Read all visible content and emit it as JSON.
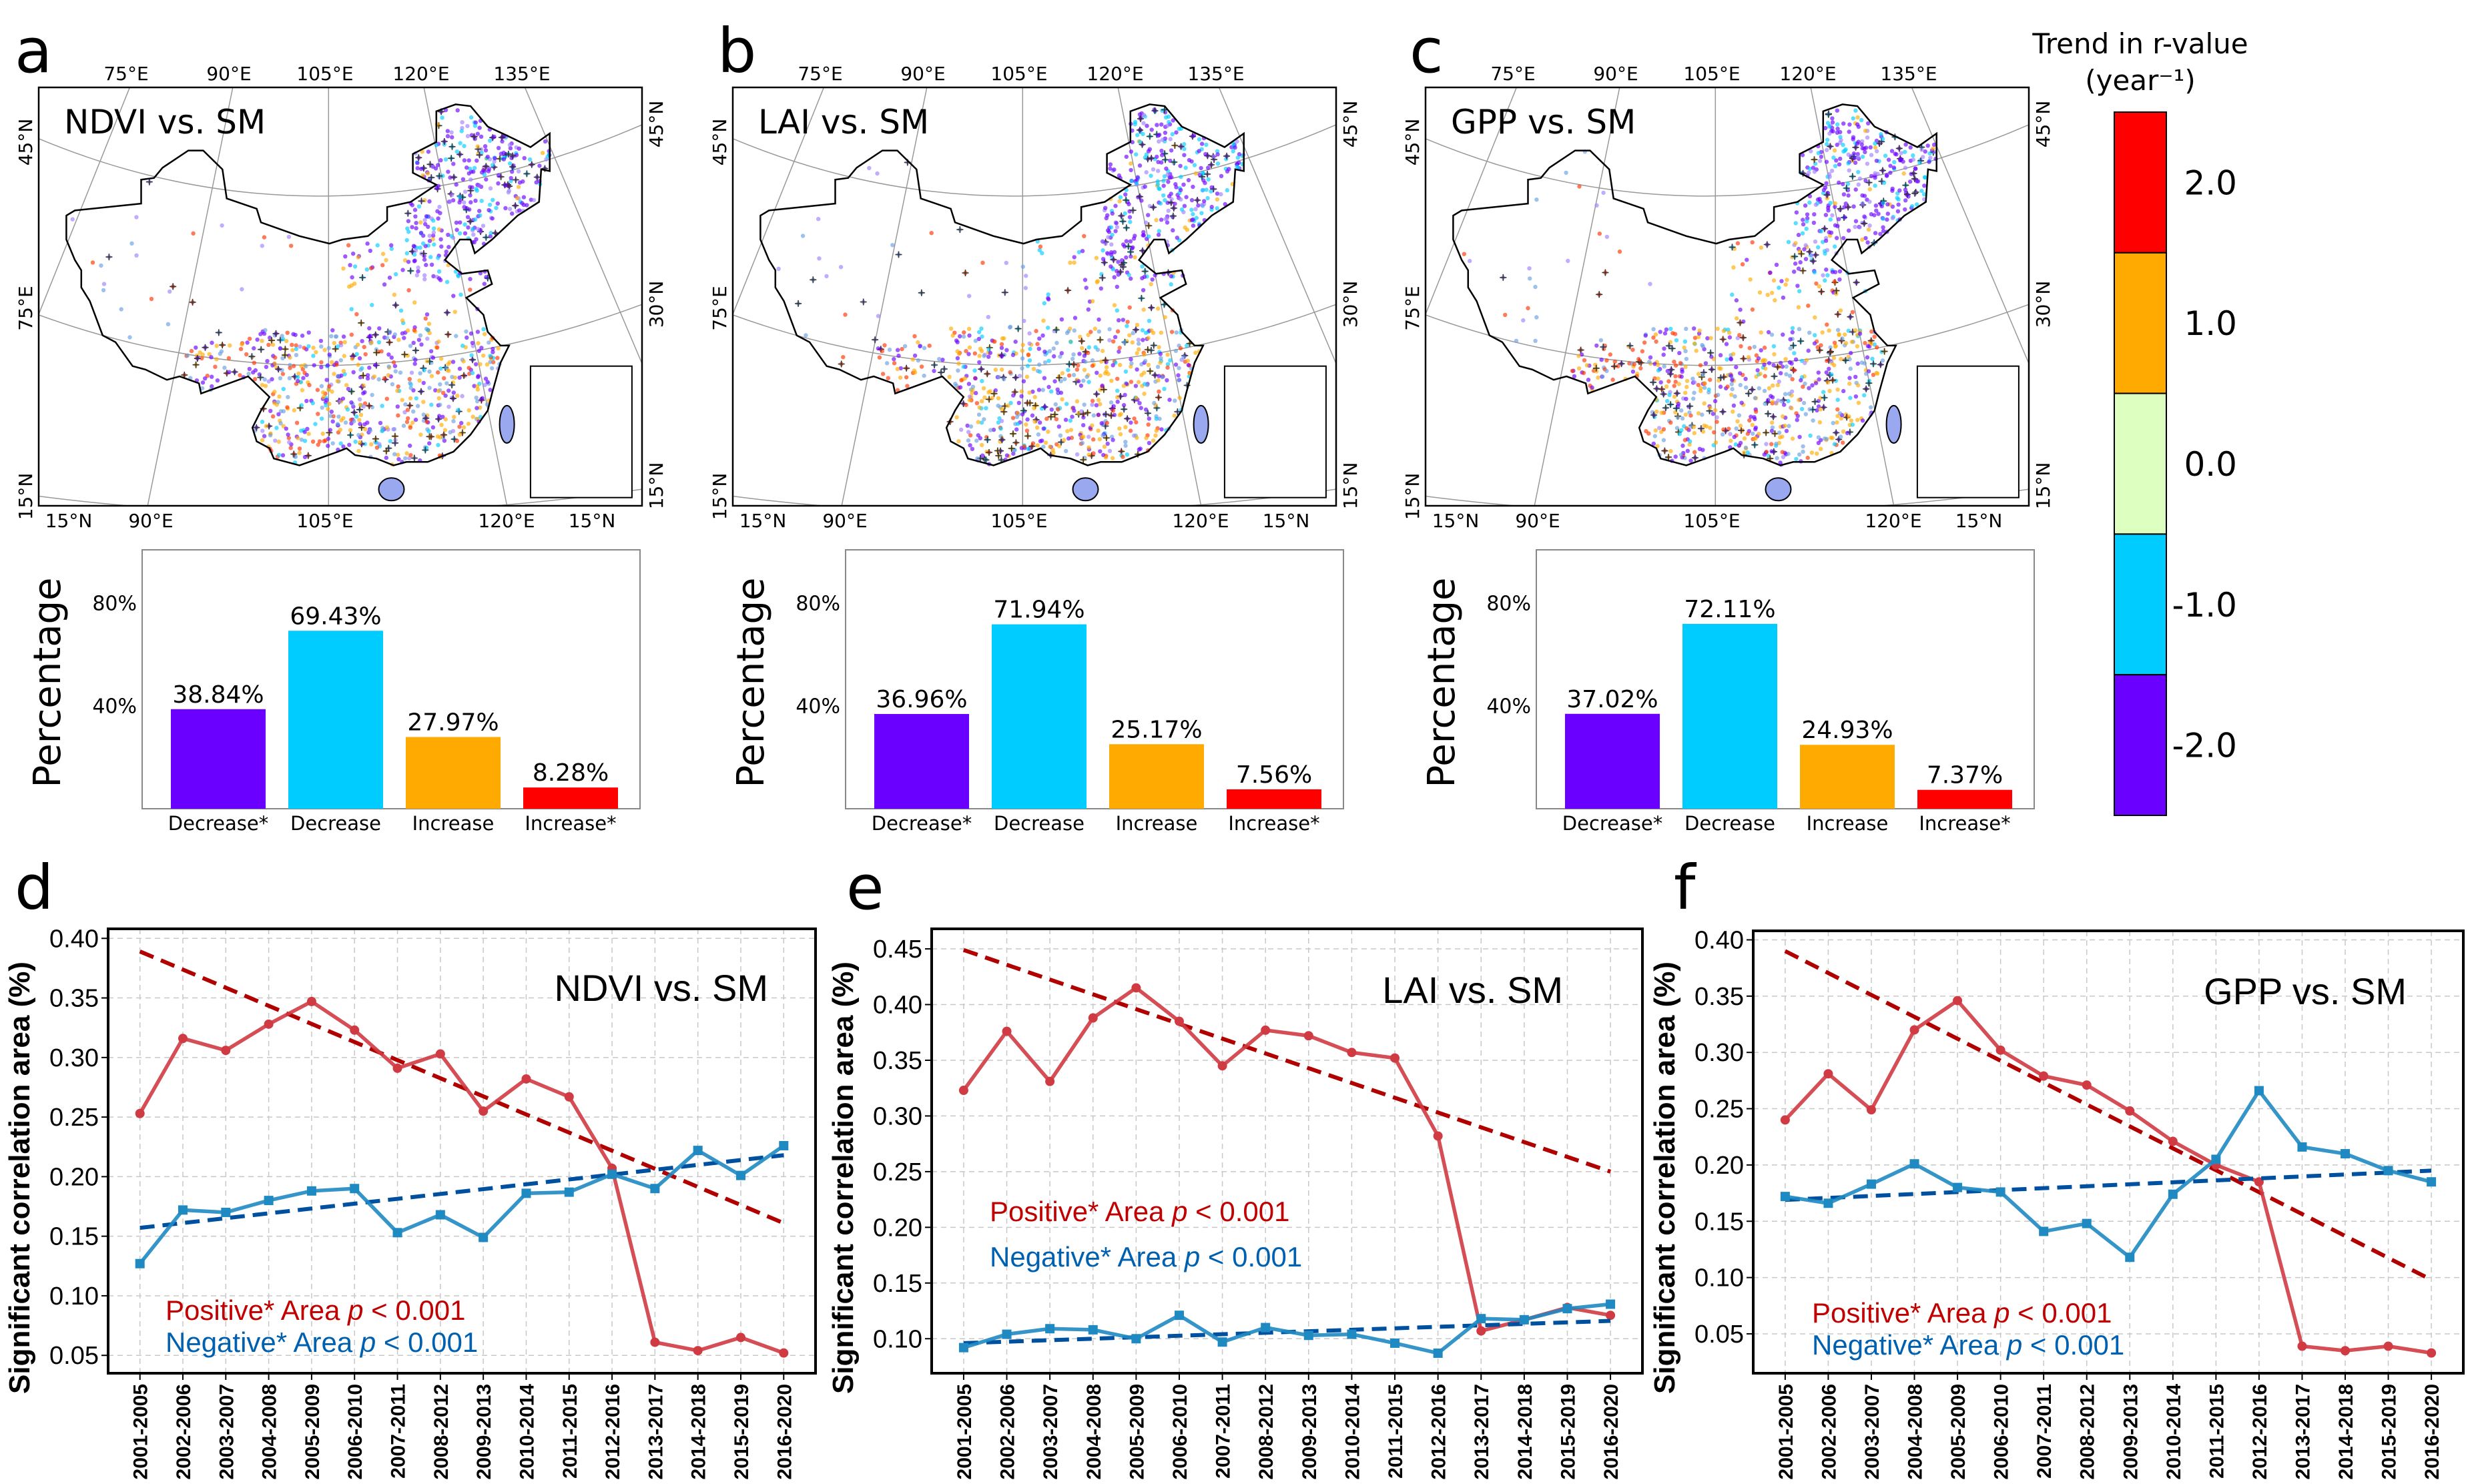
{
  "panel_labels": [
    "a",
    "b",
    "c",
    "d",
    "e",
    "f"
  ],
  "maps": [
    {
      "title": "NDVI vs. SM"
    },
    {
      "title": "LAI vs. SM"
    },
    {
      "title": "GPP vs. SM"
    }
  ],
  "map_labels": {
    "top": [
      "75°E",
      "90°E",
      "105°E",
      "120°E",
      "135°E"
    ],
    "bottom": [
      "15°N",
      "90°E",
      "105°E",
      "120°E",
      "15°N"
    ],
    "left": [
      "45°N",
      "75°E",
      "15°N"
    ],
    "right": [
      "45°N",
      "30°N",
      "15°N"
    ]
  },
  "colorbar": {
    "title_line1": "Trend in r-value",
    "title_line2": "(year⁻¹)",
    "ticks": [
      "2.0",
      "1.0",
      "0.0",
      "-1.0",
      "-2.0"
    ],
    "colors": [
      "#ff0000",
      "#ffaa00",
      "#ddffc0",
      "#00ccff",
      "#6a00ff"
    ]
  },
  "chart_data": [
    {
      "type": "bar",
      "panel": "a",
      "categories": [
        "Decrease*",
        "Decrease",
        "Increase",
        "Increase*"
      ],
      "values": [
        38.84,
        69.43,
        27.97,
        8.28
      ],
      "value_labels": [
        "38.84%",
        "69.43%",
        "27.97%",
        "8.28%"
      ],
      "colors": [
        "#6a00ff",
        "#00ccff",
        "#ffaa00",
        "#ff0000"
      ],
      "ylabel": "Percentage",
      "yticks": [
        40,
        80
      ],
      "ytick_labels": [
        "40%",
        "80%"
      ],
      "ylim": [
        0,
        101
      ]
    },
    {
      "type": "bar",
      "panel": "b",
      "categories": [
        "Decrease*",
        "Decrease",
        "Increase",
        "Increase*"
      ],
      "values": [
        36.96,
        71.94,
        25.17,
        7.56
      ],
      "value_labels": [
        "36.96%",
        "71.94%",
        "25.17%",
        "7.56%"
      ],
      "colors": [
        "#6a00ff",
        "#00ccff",
        "#ffaa00",
        "#ff0000"
      ],
      "ylabel": "Percentage",
      "yticks": [
        40,
        80
      ],
      "ytick_labels": [
        "40%",
        "80%"
      ],
      "ylim": [
        0,
        101
      ]
    },
    {
      "type": "bar",
      "panel": "c",
      "categories": [
        "Decrease*",
        "Decrease",
        "Increase",
        "Increase*"
      ],
      "values": [
        37.02,
        72.11,
        24.93,
        7.37
      ],
      "value_labels": [
        "37.02%",
        "72.11%",
        "24.93%",
        "7.37%"
      ],
      "colors": [
        "#6a00ff",
        "#00ccff",
        "#ffaa00",
        "#ff0000"
      ],
      "ylabel": "Percentage",
      "yticks": [
        40,
        80
      ],
      "ytick_labels": [
        "40%",
        "80%"
      ],
      "ylim": [
        0,
        101
      ]
    },
    {
      "type": "line",
      "panel": "d",
      "title": "NDVI vs. SM",
      "ylabel": "Significant correlation area (%)",
      "categories": [
        "2001-2005",
        "2002-2006",
        "2003-2007",
        "2004-2008",
        "2005-2009",
        "2006-2010",
        "2007-2011",
        "2008-2012",
        "2009-2013",
        "2010-2014",
        "2011-2015",
        "2012-2016",
        "2013-2017",
        "2014-2018",
        "2015-2019",
        "2016-2020"
      ],
      "ylim": [
        0.035,
        0.408
      ],
      "yticks": [
        0.05,
        0.1,
        0.15,
        0.2,
        0.25,
        0.3,
        0.35,
        0.4
      ],
      "ytick_labels": [
        "0.05",
        "0.10",
        "0.15",
        "0.20",
        "0.25",
        "0.30",
        "0.35",
        "0.40"
      ],
      "grid": true,
      "series": [
        {
          "name": "Positive* Area",
          "p_label": "p",
          "p_value": " < 0.001",
          "color": "#d03a42",
          "trend_color": "#b00000",
          "marker": "circle",
          "values": [
            0.253,
            0.316,
            0.306,
            0.328,
            0.347,
            0.323,
            0.291,
            0.303,
            0.255,
            0.282,
            0.267,
            0.207,
            0.061,
            0.054,
            0.065,
            0.052
          ],
          "trend": [
            0.389,
            0.161
          ]
        },
        {
          "name": "Negative* Area",
          "p_label": "p",
          "p_value": " < 0.001",
          "color": "#1f8ac2",
          "trend_color": "#0050a0",
          "marker": "square",
          "values": [
            0.127,
            0.172,
            0.17,
            0.18,
            0.188,
            0.19,
            0.153,
            0.168,
            0.149,
            0.186,
            0.187,
            0.202,
            0.19,
            0.222,
            0.201,
            0.226
          ],
          "trend": [
            0.157,
            0.218
          ]
        }
      ]
    },
    {
      "type": "line",
      "panel": "e",
      "title": "LAI vs. SM",
      "ylabel": "Significant correlation area (%)",
      "categories": [
        "2001-2005",
        "2002-2006",
        "2003-2007",
        "2004-2008",
        "2005-2009",
        "2006-2010",
        "2007-2011",
        "2008-2012",
        "2009-2013",
        "2010-2014",
        "2011-2015",
        "2012-2016",
        "2013-2017",
        "2014-2018",
        "2015-2019",
        "2016-2020"
      ],
      "ylim": [
        0.069,
        0.468
      ],
      "yticks": [
        0.1,
        0.15,
        0.2,
        0.25,
        0.3,
        0.35,
        0.4,
        0.45
      ],
      "ytick_labels": [
        "0.10",
        "0.15",
        "0.20",
        "0.25",
        "0.30",
        "0.35",
        "0.40",
        "0.45"
      ],
      "grid": true,
      "series": [
        {
          "name": "Positive* Area",
          "p_label": "p",
          "p_value": " < 0.001",
          "color": "#d03a42",
          "trend_color": "#b00000",
          "marker": "circle",
          "values": [
            0.323,
            0.376,
            0.331,
            0.388,
            0.415,
            0.385,
            0.345,
            0.377,
            0.372,
            0.357,
            0.352,
            0.282,
            0.107,
            0.117,
            0.128,
            0.121
          ],
          "trend": [
            0.449,
            0.25
          ]
        },
        {
          "name": "Negative* Area",
          "p_label": "p",
          "p_value": " < 0.001",
          "color": "#1f8ac2",
          "trend_color": "#0050a0",
          "marker": "square",
          "values": [
            0.092,
            0.104,
            0.109,
            0.108,
            0.1,
            0.121,
            0.097,
            0.11,
            0.103,
            0.104,
            0.096,
            0.087,
            0.118,
            0.117,
            0.127,
            0.131
          ],
          "trend": [
            0.096,
            0.116
          ]
        }
      ]
    },
    {
      "type": "line",
      "panel": "f",
      "title": "GPP vs. SM",
      "ylabel": "Significant correlation area (%)",
      "categories": [
        "2001-2005",
        "2002-2006",
        "2003-2007",
        "2004-2008",
        "2005-2009",
        "2006-2010",
        "2007-2011",
        "2008-2012",
        "2009-2013",
        "2010-2014",
        "2011-2015",
        "2012-2016",
        "2013-2017",
        "2014-2018",
        "2015-2019",
        "2016-2020"
      ],
      "ylim": [
        0.015,
        0.408
      ],
      "yticks": [
        0.05,
        0.1,
        0.15,
        0.2,
        0.25,
        0.3,
        0.35,
        0.4
      ],
      "ytick_labels": [
        "0.05",
        "0.10",
        "0.15",
        "0.20",
        "0.25",
        "0.30",
        "0.35",
        "0.40"
      ],
      "grid": true,
      "series": [
        {
          "name": "Positive* Area",
          "p_label": "p",
          "p_value": " < 0.001",
          "color": "#d03a42",
          "trend_color": "#b00000",
          "marker": "circle",
          "values": [
            0.24,
            0.281,
            0.249,
            0.32,
            0.346,
            0.302,
            0.279,
            0.271,
            0.248,
            0.221,
            0.2,
            0.185,
            0.039,
            0.035,
            0.039,
            0.033
          ],
          "trend": [
            0.39,
            0.098
          ]
        },
        {
          "name": "Negative* Area",
          "p_label": "p",
          "p_value": " < 0.001",
          "color": "#1f8ac2",
          "trend_color": "#0050a0",
          "marker": "square",
          "values": [
            0.172,
            0.166,
            0.183,
            0.201,
            0.18,
            0.176,
            0.141,
            0.148,
            0.118,
            0.174,
            0.205,
            0.266,
            0.216,
            0.21,
            0.195,
            0.185
          ],
          "trend": [
            0.169,
            0.195
          ]
        }
      ]
    }
  ]
}
